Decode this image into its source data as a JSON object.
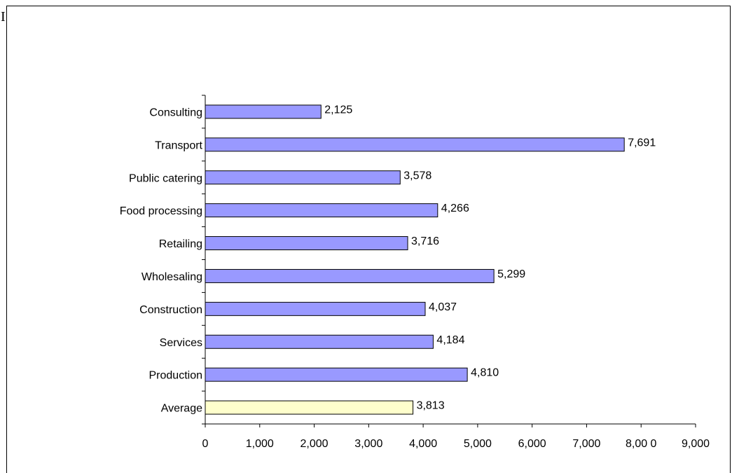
{
  "page_marker": "I",
  "chart_data": {
    "type": "bar",
    "orientation": "horizontal",
    "categories": [
      "Consulting",
      "Transport",
      "Public catering",
      "Food processing",
      "Retailing",
      "Wholesaling",
      "Construction",
      "Services",
      "Production",
      "Average"
    ],
    "values": [
      2125,
      7691,
      3578,
      4266,
      3716,
      5299,
      4037,
      4184,
      4810,
      3813
    ],
    "value_labels": [
      "2,125",
      "7,691",
      "3,578",
      "4,266",
      "3,716",
      "5,299",
      "4,037",
      "4,184",
      "4,810",
      "3,813"
    ],
    "xlim": [
      0,
      9000
    ],
    "x_ticks": [
      0,
      1000,
      2000,
      3000,
      4000,
      5000,
      6000,
      7000,
      8000,
      9000
    ],
    "x_tick_labels": [
      "0",
      "1,000",
      "2,000",
      "3,000",
      "4,000",
      "5,000",
      "6,000",
      "7,000",
      "8,00 0",
      "9,000"
    ],
    "grid": false,
    "title": "",
    "xlabel": "",
    "ylabel": "",
    "colors": {
      "bar": "#9999ff",
      "highlight_bar": "#ffffcc",
      "highlight_category": "Average",
      "border": "#000000"
    }
  }
}
